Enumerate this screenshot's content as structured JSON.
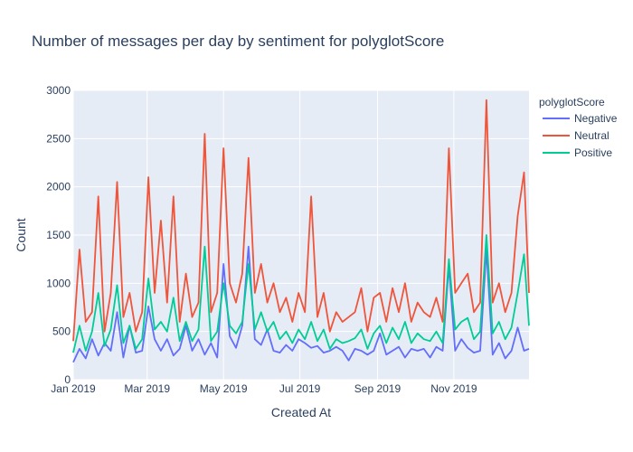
{
  "colors": {
    "plot_background": "#E5ECF6",
    "grid": "#ffffff",
    "text": "#2a3f5f"
  },
  "chart_data": {
    "type": "line",
    "title": "Number of messages per day by sentiment for polyglotScore",
    "xlabel": "Created At",
    "ylabel": "Count",
    "legend_title": "polyglotScore",
    "legend_position": "right",
    "grid": true,
    "xlim": [
      "2019-01-01",
      "2019-12-31"
    ],
    "ylim": [
      0,
      3000
    ],
    "x_ticks": [
      {
        "date": "2019-01-01",
        "label": "Jan 2019"
      },
      {
        "date": "2019-03-01",
        "label": "Mar 2019"
      },
      {
        "date": "2019-05-01",
        "label": "May 2019"
      },
      {
        "date": "2019-07-01",
        "label": "Jul 2019"
      },
      {
        "date": "2019-09-01",
        "label": "Sep 2019"
      },
      {
        "date": "2019-11-01",
        "label": "Nov 2019"
      }
    ],
    "y_ticks": [
      0,
      500,
      1000,
      1500,
      2000,
      2500,
      3000
    ],
    "x": [
      "2019-01-01",
      "2019-01-06",
      "2019-01-11",
      "2019-01-16",
      "2019-01-21",
      "2019-01-26",
      "2019-01-31",
      "2019-02-05",
      "2019-02-10",
      "2019-02-15",
      "2019-02-20",
      "2019-02-25",
      "2019-03-02",
      "2019-03-07",
      "2019-03-12",
      "2019-03-17",
      "2019-03-22",
      "2019-03-27",
      "2019-04-01",
      "2019-04-06",
      "2019-04-11",
      "2019-04-16",
      "2019-04-21",
      "2019-04-26",
      "2019-05-01",
      "2019-05-06",
      "2019-05-11",
      "2019-05-16",
      "2019-05-21",
      "2019-05-26",
      "2019-05-31",
      "2019-06-05",
      "2019-06-10",
      "2019-06-15",
      "2019-06-20",
      "2019-06-25",
      "2019-06-30",
      "2019-07-05",
      "2019-07-10",
      "2019-07-15",
      "2019-07-20",
      "2019-07-25",
      "2019-07-30",
      "2019-08-04",
      "2019-08-09",
      "2019-08-14",
      "2019-08-19",
      "2019-08-24",
      "2019-08-29",
      "2019-09-03",
      "2019-09-08",
      "2019-09-13",
      "2019-09-18",
      "2019-09-23",
      "2019-09-28",
      "2019-10-03",
      "2019-10-08",
      "2019-10-13",
      "2019-10-18",
      "2019-10-23",
      "2019-10-28",
      "2019-11-02",
      "2019-11-07",
      "2019-11-12",
      "2019-11-17",
      "2019-11-22",
      "2019-11-27",
      "2019-12-02",
      "2019-12-07",
      "2019-12-12",
      "2019-12-17",
      "2019-12-22",
      "2019-12-27",
      "2019-12-31"
    ],
    "series": [
      {
        "name": "Negative",
        "color": "#636EFA",
        "values": [
          180,
          320,
          220,
          420,
          250,
          380,
          300,
          700,
          230,
          560,
          280,
          300,
          760,
          420,
          300,
          420,
          250,
          320,
          560,
          300,
          420,
          260,
          380,
          230,
          1200,
          450,
          330,
          560,
          1380,
          420,
          360,
          520,
          300,
          280,
          360,
          300,
          420,
          380,
          330,
          350,
          280,
          300,
          340,
          300,
          200,
          320,
          300,
          260,
          300,
          480,
          260,
          300,
          340,
          230,
          320,
          300,
          320,
          230,
          340,
          300,
          1180,
          300,
          420,
          330,
          280,
          300,
          1350,
          260,
          380,
          220,
          300,
          540,
          300,
          320
        ]
      },
      {
        "name": "Neutral",
        "color": "#EF553B",
        "values": [
          400,
          1350,
          600,
          700,
          1900,
          500,
          900,
          2050,
          650,
          900,
          500,
          700,
          2100,
          900,
          1650,
          800,
          1900,
          600,
          1100,
          650,
          800,
          2550,
          700,
          900,
          2400,
          1000,
          800,
          1100,
          2300,
          900,
          1200,
          800,
          1000,
          700,
          850,
          600,
          900,
          700,
          1900,
          650,
          900,
          500,
          700,
          600,
          650,
          700,
          950,
          500,
          850,
          900,
          600,
          950,
          700,
          1000,
          600,
          800,
          700,
          650,
          850,
          600,
          2400,
          900,
          1000,
          1100,
          700,
          800,
          2900,
          800,
          1000,
          700,
          900,
          1700,
          2150,
          900
        ]
      },
      {
        "name": "Positive",
        "color": "#00CC96",
        "values": [
          280,
          560,
          300,
          500,
          900,
          350,
          520,
          980,
          380,
          560,
          320,
          420,
          1050,
          520,
          600,
          500,
          850,
          400,
          600,
          400,
          520,
          1380,
          400,
          500,
          1000,
          560,
          480,
          600,
          1200,
          520,
          700,
          500,
          600,
          420,
          500,
          380,
          520,
          420,
          600,
          400,
          520,
          320,
          420,
          380,
          400,
          430,
          520,
          320,
          480,
          560,
          380,
          540,
          420,
          600,
          380,
          480,
          420,
          400,
          500,
          380,
          1250,
          520,
          600,
          640,
          420,
          500,
          1500,
          480,
          600,
          420,
          540,
          900,
          1300,
          560
        ]
      }
    ]
  }
}
